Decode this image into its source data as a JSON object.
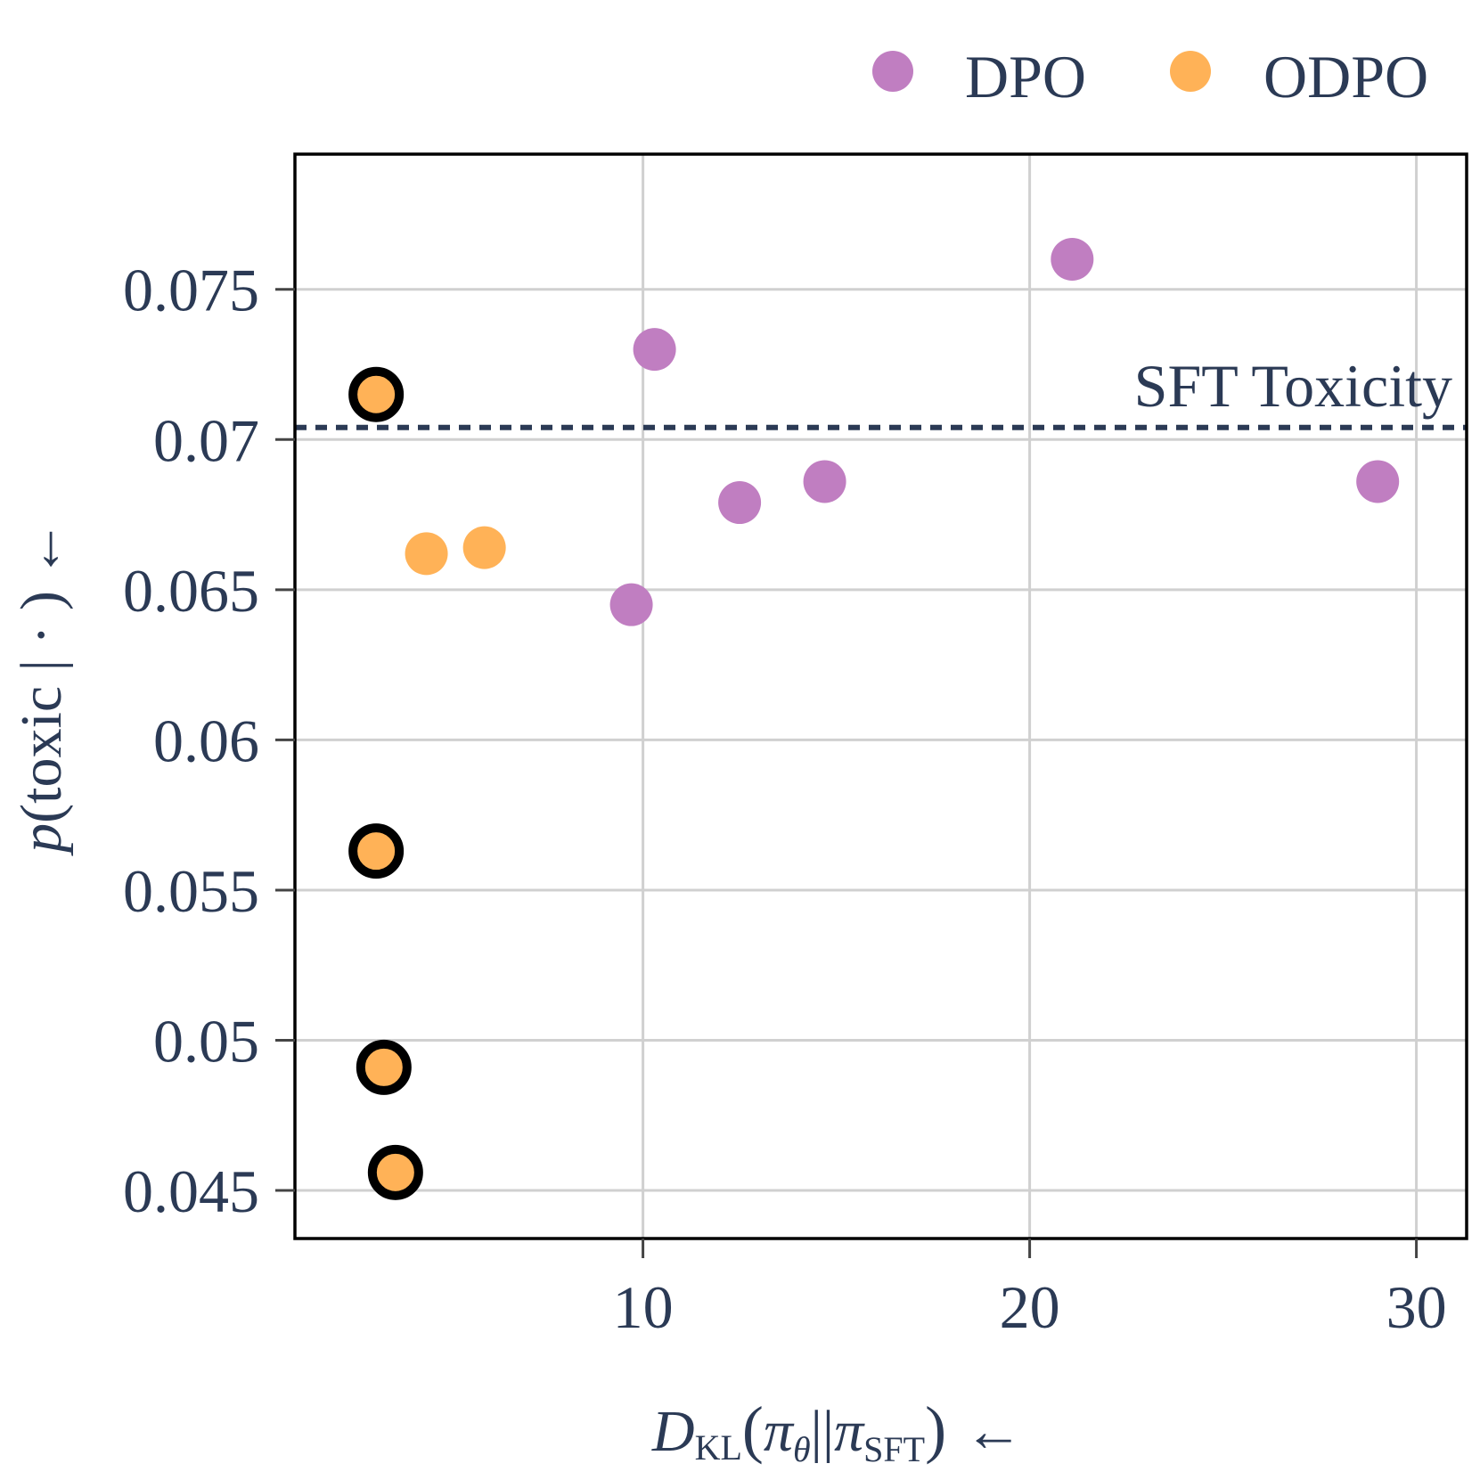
{
  "chart_data": {
    "type": "scatter",
    "title": "",
    "xlabel": {
      "main": "D",
      "sub1": "KL",
      "pi": "π",
      "theta": "θ",
      "bars": "||",
      "sub2": "SFT",
      "arrow": "←"
    },
    "ylabel": {
      "p": "p",
      "text": "(toxic | · )",
      "arrow": "←"
    },
    "xlim": [
      1.0,
      31.3
    ],
    "ylim": [
      0.0434,
      0.0795
    ],
    "xticks": [
      10,
      20,
      30
    ],
    "xtick_labels": [
      "10",
      "20",
      "30"
    ],
    "yticks": [
      0.045,
      0.05,
      0.055,
      0.06,
      0.065,
      0.07,
      0.075
    ],
    "ytick_labels": [
      "0.045",
      "0.05",
      "0.055",
      "0.06",
      "0.065",
      "0.07",
      "0.075"
    ],
    "grid": true,
    "legend_position": "top-right",
    "reference_line": {
      "label": "SFT Toxicity",
      "y": 0.0704,
      "color": "#2b3a55"
    },
    "series": [
      {
        "name": "DPO",
        "color": "#c07ec1",
        "points": [
          {
            "x": 9.7,
            "y": 0.0645,
            "highlighted": false
          },
          {
            "x": 10.3,
            "y": 0.073,
            "highlighted": false
          },
          {
            "x": 12.5,
            "y": 0.0679,
            "highlighted": false
          },
          {
            "x": 14.7,
            "y": 0.0686,
            "highlighted": false
          },
          {
            "x": 21.1,
            "y": 0.076,
            "highlighted": false
          },
          {
            "x": 29.0,
            "y": 0.0686,
            "highlighted": false
          }
        ]
      },
      {
        "name": "ODPO",
        "color": "#ffb257",
        "points": [
          {
            "x": 3.1,
            "y": 0.0715,
            "highlighted": true
          },
          {
            "x": 3.1,
            "y": 0.0563,
            "highlighted": true
          },
          {
            "x": 3.3,
            "y": 0.0491,
            "highlighted": true
          },
          {
            "x": 3.6,
            "y": 0.0456,
            "highlighted": true
          },
          {
            "x": 4.4,
            "y": 0.0662,
            "highlighted": false
          },
          {
            "x": 5.9,
            "y": 0.0664,
            "highlighted": false
          }
        ]
      }
    ]
  }
}
